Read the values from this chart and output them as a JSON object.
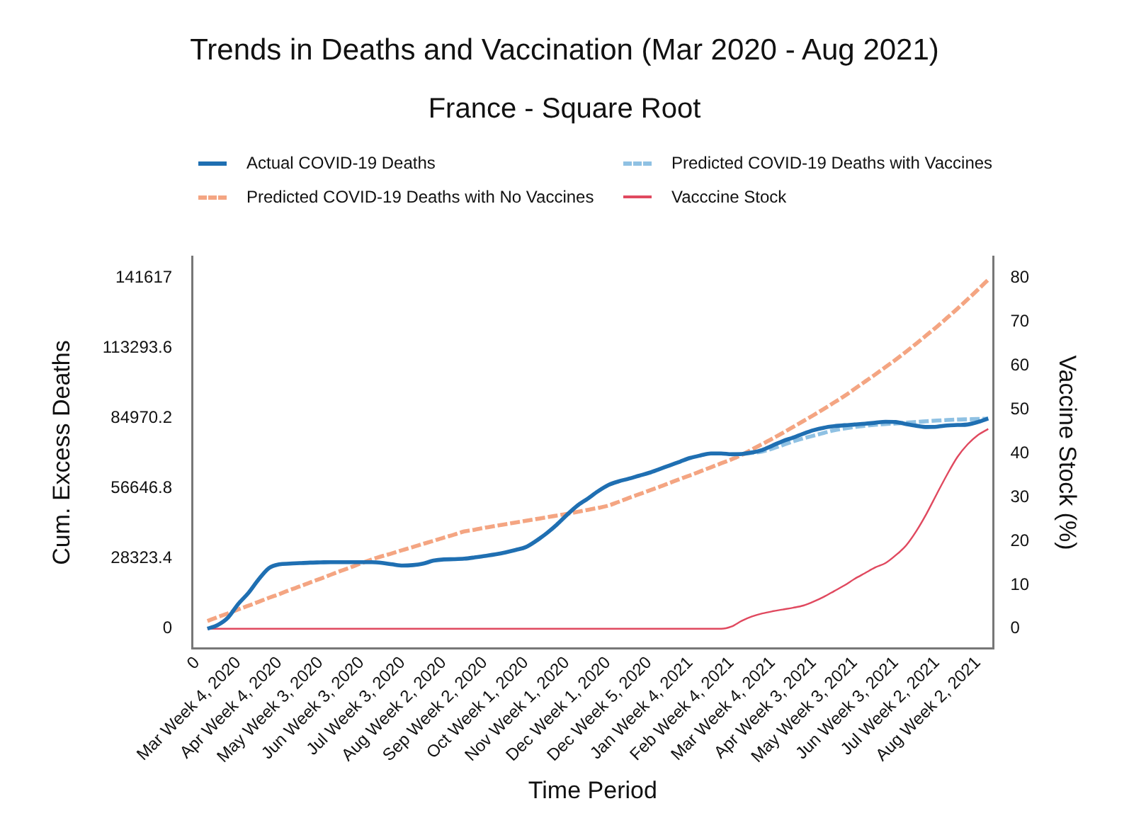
{
  "chart_data": {
    "type": "line",
    "title": "Trends in Deaths and Vaccination (Mar 2020 - Aug 2021)",
    "subtitle": "France - Square Root",
    "xlabel": "Time Period",
    "ylabel": "Cum. Excess Deaths",
    "y2label": "Vaccine Stock (%)",
    "categories": [
      "0",
      null,
      null,
      null,
      "Mar Week 4, 2020",
      null,
      null,
      null,
      "Apr Week 4, 2020",
      null,
      null,
      null,
      "May Week 3, 2020",
      null,
      null,
      null,
      "Jun Week 3, 2020",
      null,
      null,
      null,
      "Jul Week 3, 2020",
      null,
      null,
      null,
      "Aug Week 2, 2020",
      null,
      null,
      null,
      "Sep Week 2, 2020",
      null,
      null,
      null,
      "Oct Week 1, 2020",
      null,
      null,
      null,
      "Nov Week 1, 2020",
      null,
      null,
      null,
      "Dec Week 1, 2020",
      null,
      null,
      null,
      "Dec Week 5, 2020",
      null,
      null,
      null,
      "Jan Week 4, 2021",
      null,
      null,
      null,
      "Feb Week 4, 2021",
      null,
      null,
      null,
      "Mar Week 4, 2021",
      null,
      null,
      null,
      "Apr Week 3, 2021",
      null,
      null,
      null,
      "May Week 3, 2021",
      null,
      null,
      null,
      "Jun Week 3, 2021",
      null,
      null,
      null,
      "Jul Week 2, 2021",
      null,
      null,
      null,
      "Aug Week 2, 2021",
      null
    ],
    "ylim": [
      -8000,
      150300
    ],
    "yticks": [
      0,
      28323.4,
      56646.8,
      84970.2,
      113293.6,
      141617
    ],
    "y2lim": [
      -4.5,
      84.9
    ],
    "y2ticks": [
      0,
      10,
      20,
      30,
      40,
      50,
      60,
      70,
      80
    ],
    "grid": false,
    "legend": "top",
    "marker": "none",
    "series": [
      {
        "name": "Actual COVID-19 Deaths",
        "color": "#1f6fb2",
        "line_style": "solid",
        "values": [
          null,
          0,
          1500,
          4500,
          10000,
          14500,
          20000,
          24500,
          26000,
          26300,
          26500,
          26700,
          26800,
          26900,
          26900,
          26900,
          26900,
          26900,
          26600,
          26000,
          25500,
          25700,
          26300,
          27500,
          28000,
          28100,
          28300,
          28800,
          29400,
          30000,
          30800,
          31800,
          33000,
          35500,
          38500,
          42000,
          46000,
          49700,
          52500,
          55500,
          58000,
          59500,
          60600,
          61800,
          63000,
          64500,
          66000,
          67500,
          69000,
          70000,
          70800,
          70800,
          70500,
          70600,
          71200,
          72200,
          74000,
          75800,
          77200,
          78800,
          80200,
          81200,
          81800,
          82200,
          82500,
          82800,
          83200,
          83600,
          83500,
          82700,
          82000,
          81500,
          81600,
          82100,
          82300,
          82500,
          83500,
          84900
        ]
      },
      {
        "name": "Predicted COVID-19 Deaths with Vaccines",
        "color": "#8fc1e3",
        "line_style": "dashed",
        "values": [
          null,
          null,
          null,
          null,
          null,
          null,
          null,
          null,
          null,
          null,
          null,
          null,
          null,
          null,
          null,
          null,
          null,
          null,
          null,
          null,
          null,
          null,
          null,
          null,
          null,
          null,
          null,
          null,
          null,
          null,
          null,
          null,
          null,
          null,
          null,
          null,
          null,
          null,
          null,
          null,
          null,
          null,
          null,
          null,
          null,
          null,
          null,
          null,
          null,
          null,
          null,
          null,
          70400,
          70600,
          71000,
          71600,
          72800,
          74200,
          75700,
          76900,
          78000,
          79100,
          80200,
          80900,
          81500,
          82000,
          82400,
          82700,
          82900,
          83200,
          83500,
          83800,
          84100,
          84300,
          84500,
          84600,
          84700,
          84900
        ]
      },
      {
        "name": "Predicted COVID-19 Deaths with No Vaccines",
        "color": "#f4a582",
        "line_style": "dashed",
        "values": [
          null,
          3100,
          4700,
          6200,
          7800,
          9300,
          10900,
          12500,
          14000,
          15600,
          17100,
          18700,
          20200,
          21800,
          23400,
          24900,
          26500,
          28000,
          29300,
          30500,
          31800,
          33000,
          34300,
          35500,
          36800,
          38000,
          39300,
          40000,
          40800,
          41500,
          42200,
          42900,
          43600,
          44300,
          45000,
          45700,
          46400,
          47200,
          48000,
          48800,
          49700,
          51200,
          52800,
          54300,
          55800,
          57300,
          58900,
          60500,
          62000,
          63600,
          65200,
          66800,
          68400,
          70200,
          72400,
          74600,
          76800,
          79100,
          81500,
          83900,
          86300,
          88800,
          91400,
          94000,
          96900,
          99800,
          102700,
          105700,
          108700,
          111900,
          115200,
          118600,
          122000,
          125600,
          129300,
          133100,
          137000,
          141000
        ]
      },
      {
        "name": "Vacccine Stock",
        "color": "#e0495f",
        "line_style": "solid",
        "axis": "y2",
        "values": [
          null,
          0,
          0,
          0,
          0,
          0,
          0,
          0,
          0,
          0,
          0,
          0,
          0,
          0,
          0,
          0,
          0,
          0,
          0,
          0,
          0,
          0,
          0,
          0,
          0,
          0,
          0,
          0,
          0,
          0,
          0,
          0,
          0,
          0,
          0,
          0,
          0,
          0,
          0,
          0,
          0,
          0,
          0,
          0,
          0,
          0,
          0,
          0,
          0,
          0,
          0,
          0,
          0.5,
          1.8,
          2.8,
          3.5,
          4.0,
          4.4,
          4.8,
          5.3,
          6.2,
          7.3,
          8.6,
          9.9,
          11.4,
          12.7,
          14.0,
          15.0,
          16.8,
          19.0,
          22.3,
          26.3,
          30.8,
          35.2,
          39.2,
          42.1,
          44.2,
          45.6
        ]
      }
    ]
  }
}
